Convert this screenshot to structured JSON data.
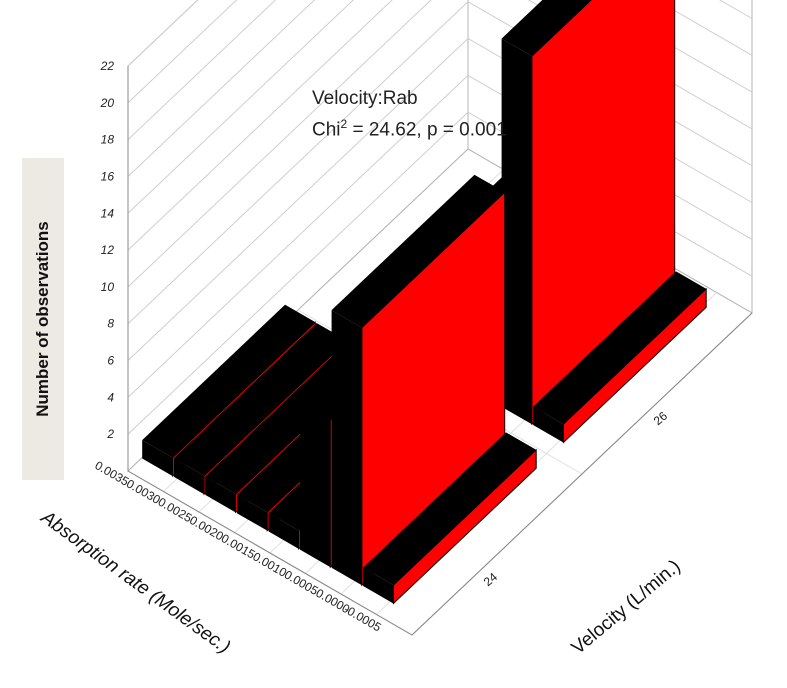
{
  "chart_data": {
    "type": "bar3d",
    "annotation": {
      "line1": "Velocity:Rab",
      "line2_prefix": "Chi",
      "line2_sup": "2",
      "line2_suffix": " = 24.62, p = 0.001"
    },
    "zlabel": "Number of observations",
    "ylabel": "Absorption rate (Mole/sec.)",
    "xlabel": "Velocity (L/min.)",
    "z_ticks": [
      "2",
      "4",
      "6",
      "8",
      "10",
      "12",
      "14",
      "16",
      "18",
      "20",
      "22"
    ],
    "y_ticks": [
      "-0.0005",
      "0.0000",
      "0.0005",
      "0.0010",
      "0.0015",
      "0.0020",
      "0.0025",
      "0.0030",
      "0.0035"
    ],
    "x_ticks": [
      "24",
      "26"
    ],
    "zlim": [
      0,
      22
    ],
    "bar_color": "#ff0000",
    "shade_color": "#000000",
    "bars": [
      {
        "velocity": "24",
        "absorption": "0.0000",
        "count": 1
      },
      {
        "velocity": "24",
        "absorption": "0.0005",
        "count": 14
      },
      {
        "velocity": "24",
        "absorption": "0.0010",
        "count": 8
      },
      {
        "velocity": "24",
        "absorption": "0.0015",
        "count": 1
      },
      {
        "velocity": "24",
        "absorption": "0.0020",
        "count": 1
      },
      {
        "velocity": "24",
        "absorption": "0.0025",
        "count": 1
      },
      {
        "velocity": "24",
        "absorption": "0.0030",
        "count": 1
      },
      {
        "velocity": "24",
        "absorption": "0.0035",
        "count": 1
      },
      {
        "velocity": "26",
        "absorption": "0.0000",
        "count": 1
      },
      {
        "velocity": "26",
        "absorption": "0.0005",
        "count": 20
      },
      {
        "velocity": "26",
        "absorption": "0.0010",
        "count": 7
      },
      {
        "velocity": "26",
        "absorption": "0.0015",
        "count": 2
      },
      {
        "velocity": "26",
        "absorption": "0.0020",
        "count": 2
      },
      {
        "velocity": "26",
        "absorption": "0.0025",
        "count": 2
      }
    ]
  }
}
